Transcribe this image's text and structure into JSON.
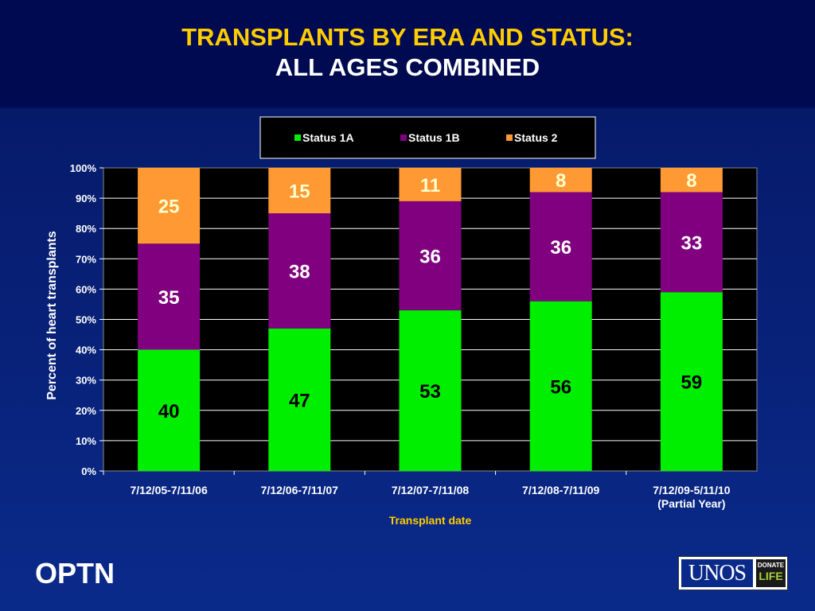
{
  "slide": {
    "title_line1": "TRANSPLANTS BY ERA AND STATUS:",
    "title_line2": "ALL AGES COMBINED",
    "footer_brand": "OPTN",
    "logo_text": "UNOS",
    "logo_donate": "DONATE",
    "logo_life": "LIFE"
  },
  "colors": {
    "status_1a": "#00ee00",
    "status_1b": "#800080",
    "status_2": "#ff9933",
    "plot_background": "#000000",
    "axis_text": "#ffffff",
    "xlabel_text": "#ffcc00",
    "label_1a": "#000000",
    "label_1b": "#ffffff",
    "label_2": "#ffffcc"
  },
  "chart_data": {
    "type": "bar",
    "stacked": true,
    "categories": [
      "7/12/05-7/11/06",
      "7/12/06-7/11/07",
      "7/12/07-7/11/08",
      "7/12/08-7/11/09",
      "7/12/09-5/11/10\n(Partial Year)"
    ],
    "series": [
      {
        "name": "Status 1A",
        "values": [
          40,
          47,
          53,
          56,
          59
        ]
      },
      {
        "name": "Status 1B",
        "values": [
          35,
          38,
          36,
          36,
          33
        ]
      },
      {
        "name": "Status 2",
        "values": [
          25,
          15,
          11,
          8,
          8
        ]
      }
    ],
    "xlabel": "Transplant date",
    "ylabel": "Percent of heart transplants",
    "ylim": [
      0,
      100
    ],
    "yticks": [
      "0%",
      "10%",
      "20%",
      "30%",
      "40%",
      "50%",
      "60%",
      "70%",
      "80%",
      "90%",
      "100%"
    ],
    "grid": true,
    "legend": "top-center"
  }
}
